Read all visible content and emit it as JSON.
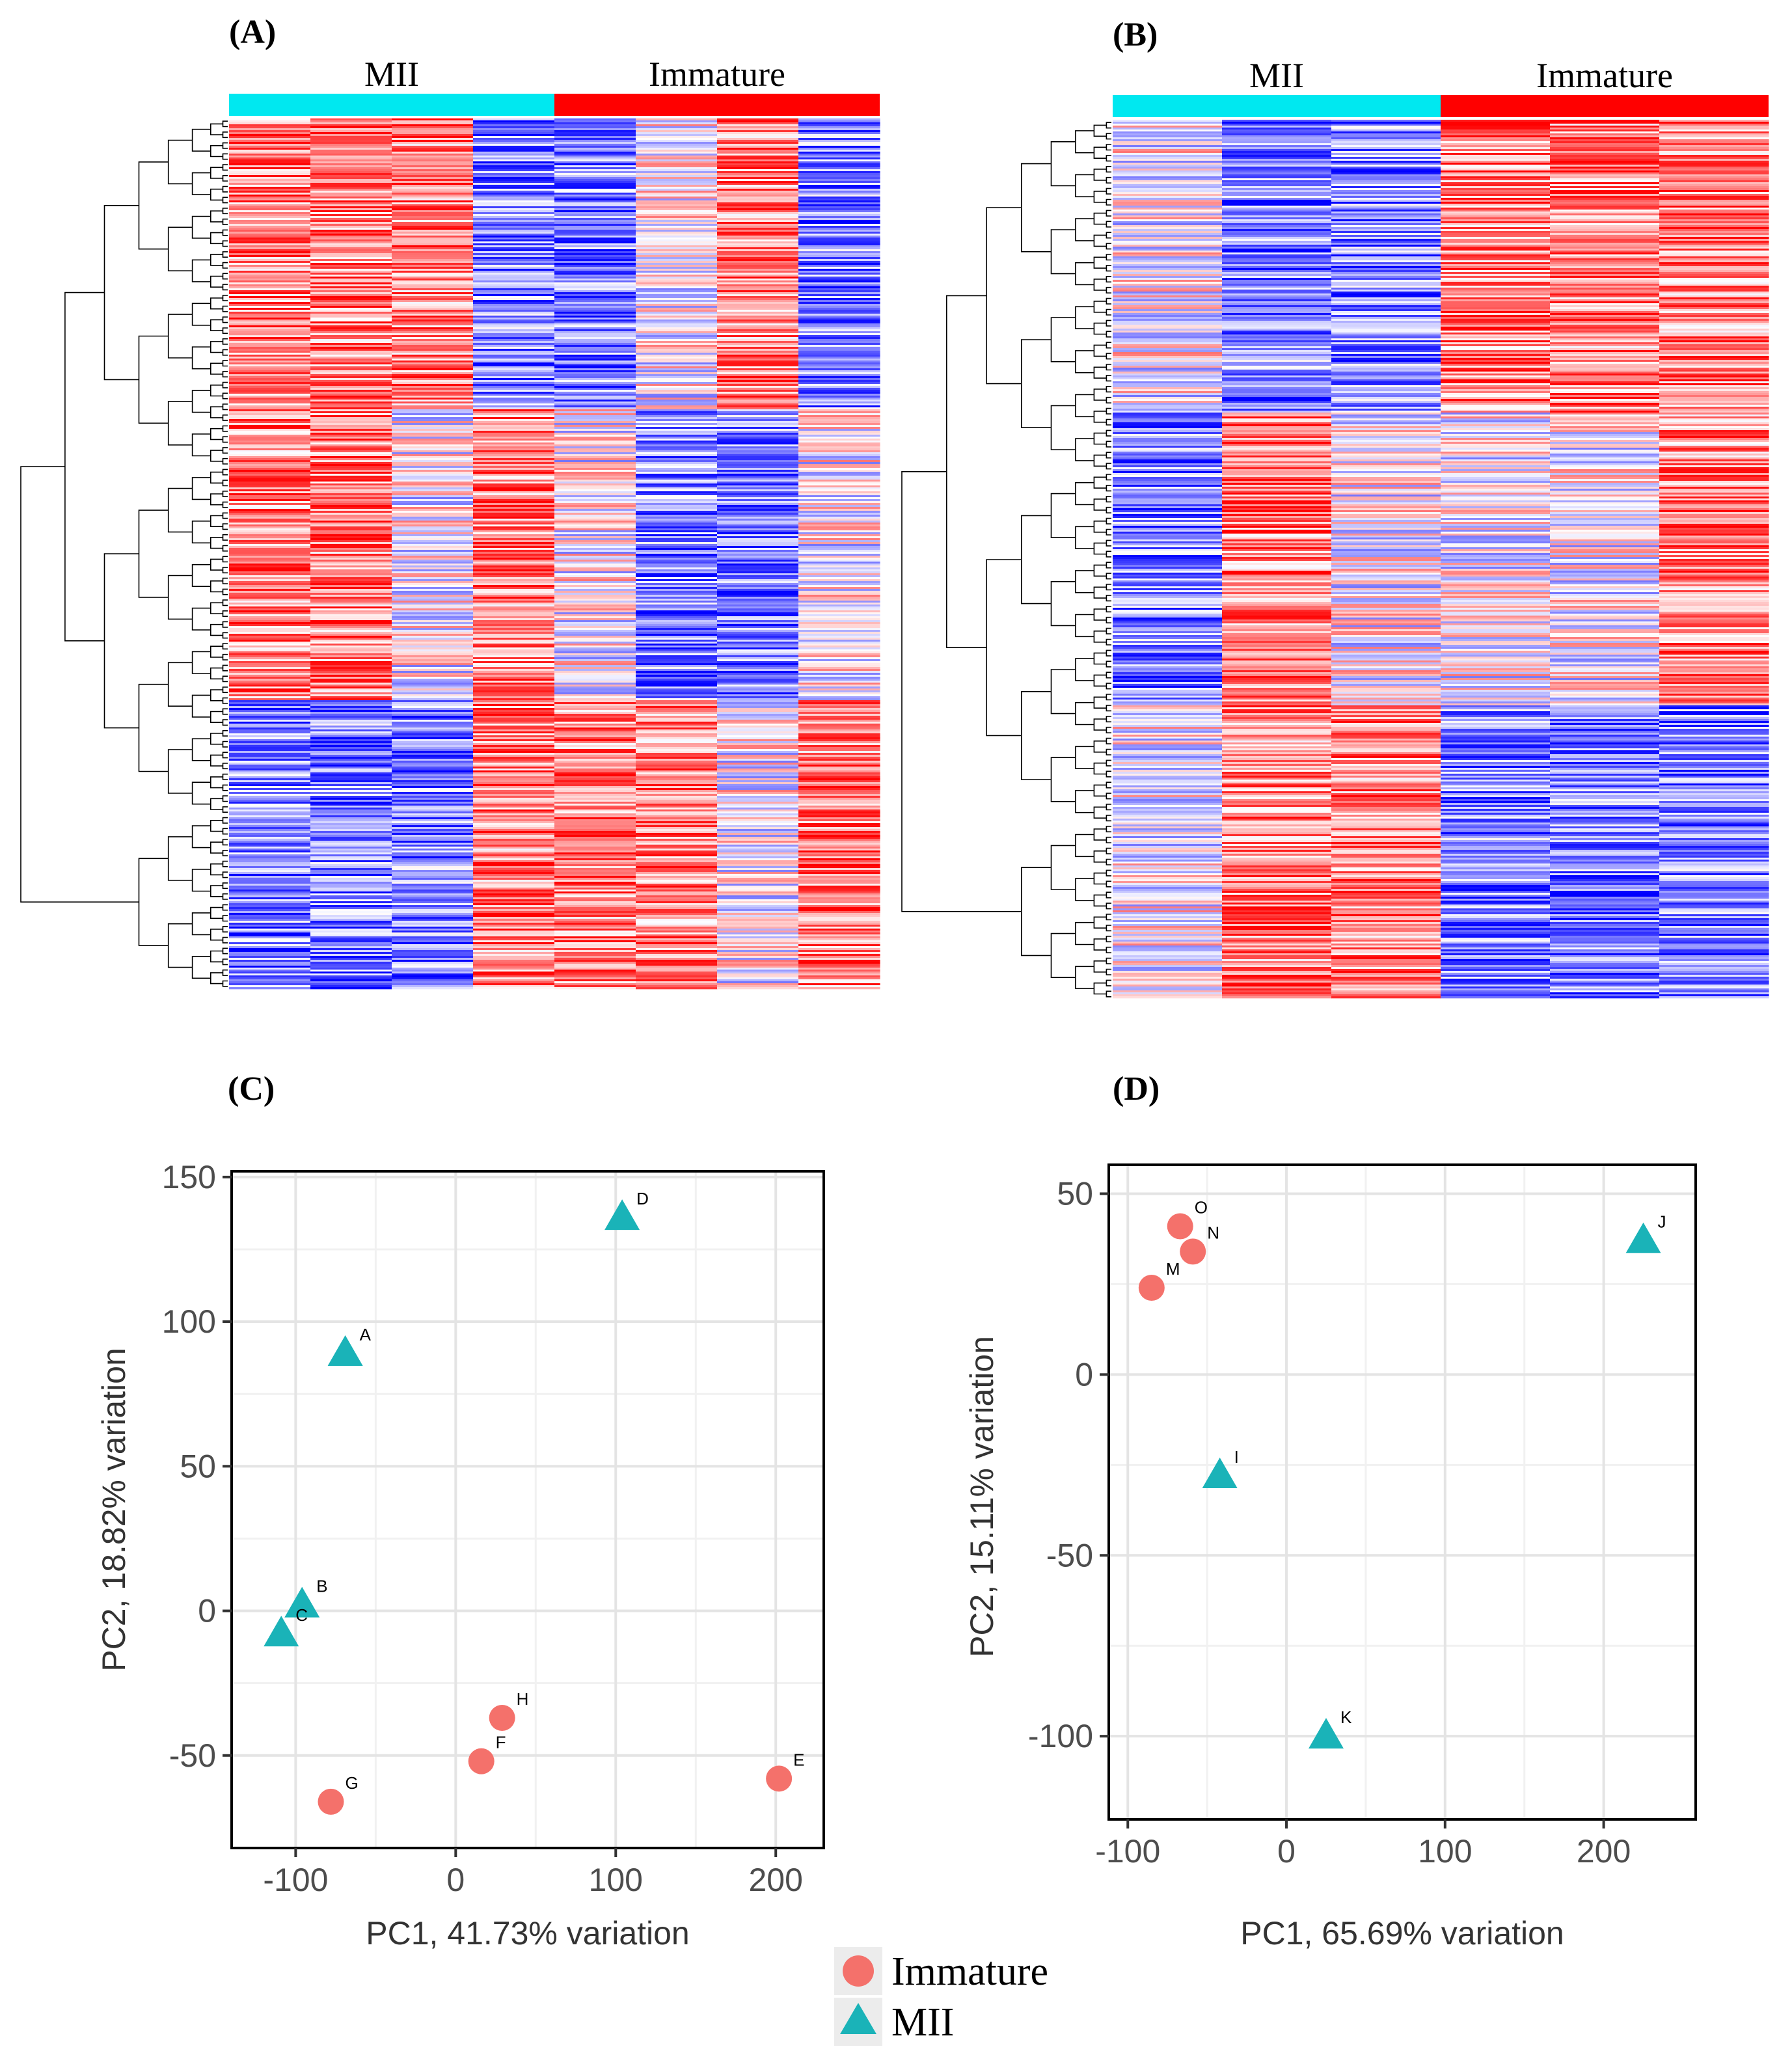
{
  "figure": {
    "background": "#ffffff",
    "colors": {
      "mii": "#00e8f0",
      "immature": "#ff0000",
      "heat_low": "#0000ff",
      "heat_high": "#ff0000",
      "point_mii": "#1ab3b8",
      "point_immature": "#f4716b",
      "grid": "#e4e4e4"
    }
  },
  "panels": {
    "A": {
      "label": "(A)",
      "groups": [
        {
          "name": "MII",
          "samples": 4
        },
        {
          "name": "Immature",
          "samples": 4
        }
      ]
    },
    "B": {
      "label": "(B)",
      "groups": [
        {
          "name": "MII",
          "samples": 3
        },
        {
          "name": "Immature",
          "samples": 3
        }
      ]
    },
    "C": {
      "label": "(C)"
    },
    "D": {
      "label": "(D)"
    }
  },
  "legend": {
    "items": [
      {
        "name": "Immature",
        "shape": "circle"
      },
      {
        "name": "MII",
        "shape": "triangle"
      }
    ]
  },
  "chart_data": [
    {
      "id": "A",
      "type": "heatmap",
      "title": "",
      "column_groups": [
        "MII",
        "MII",
        "MII",
        "MII",
        "Immature",
        "Immature",
        "Immature",
        "Immature"
      ],
      "row_blocks": [
        {
          "rows": "upper cluster",
          "pattern": [
            "high",
            "high",
            "high",
            "low",
            "low",
            "mixed",
            "high",
            "low"
          ]
        },
        {
          "rows": "middle cluster",
          "pattern": [
            "high",
            "high",
            "mixed",
            "high",
            "mixed",
            "low",
            "low",
            "mixed"
          ]
        },
        {
          "rows": "lower cluster",
          "pattern": [
            "low",
            "low",
            "low",
            "high",
            "high",
            "high",
            "mixed",
            "high"
          ]
        }
      ],
      "dendrogram": "rows"
    },
    {
      "id": "B",
      "type": "heatmap",
      "title": "",
      "column_groups": [
        "MII",
        "MII",
        "MII",
        "Immature",
        "Immature",
        "Immature"
      ],
      "row_blocks": [
        {
          "rows": "upper cluster",
          "pattern": [
            "mixed",
            "low",
            "low",
            "high",
            "high",
            "high"
          ]
        },
        {
          "rows": "middle cluster",
          "pattern": [
            "low",
            "high",
            "mixed",
            "mixed",
            "mixed",
            "high"
          ]
        },
        {
          "rows": "lower cluster",
          "pattern": [
            "mixed",
            "high",
            "high",
            "low",
            "low",
            "low"
          ]
        }
      ],
      "dendrogram": "rows"
    },
    {
      "id": "C",
      "type": "scatter",
      "xlabel": "PC1, 41.73% variation",
      "ylabel": "PC2, 18.82% variation",
      "xlim": [
        -140,
        230
      ],
      "ylim": [
        -82,
        152
      ],
      "xticks": [
        -100,
        0,
        100,
        200
      ],
      "yticks": [
        -50,
        0,
        50,
        100,
        150
      ],
      "xtick_labels": [
        "-100",
        "0",
        "100",
        "200"
      ],
      "ytick_labels": [
        "-50",
        "0",
        "50",
        "100",
        "150"
      ],
      "grid": true,
      "legend": "bottom",
      "series": [
        {
          "name": "Immature",
          "points": [
            {
              "label": "E",
              "x": 202,
              "y": -58
            },
            {
              "label": "F",
              "x": 16,
              "y": -52
            },
            {
              "label": "G",
              "x": -78,
              "y": -66
            },
            {
              "label": "H",
              "x": 29,
              "y": -37
            }
          ]
        },
        {
          "name": "MII",
          "points": [
            {
              "label": "A",
              "x": -69,
              "y": 89
            },
            {
              "label": "B",
              "x": -96,
              "y": 2
            },
            {
              "label": "C",
              "x": -109,
              "y": -8
            },
            {
              "label": "D",
              "x": 104,
              "y": 136
            }
          ]
        }
      ]
    },
    {
      "id": "D",
      "type": "scatter",
      "xlabel": "PC1, 65.69% variation",
      "ylabel": "PC2, 15.11% variation",
      "xlim": [
        -112,
        258
      ],
      "ylim": [
        -123,
        58
      ],
      "xticks": [
        -100,
        0,
        100,
        200
      ],
      "yticks": [
        -100,
        -50,
        0,
        50
      ],
      "xtick_labels": [
        "-100",
        "0",
        "100",
        "200"
      ],
      "ytick_labels": [
        "-100",
        "-50",
        "0",
        "50"
      ],
      "grid": true,
      "legend": "bottom",
      "series": [
        {
          "name": "Immature",
          "points": [
            {
              "label": "M",
              "x": -85,
              "y": 24
            },
            {
              "label": "N",
              "x": -59,
              "y": 34
            },
            {
              "label": "O",
              "x": -67,
              "y": 41
            }
          ]
        },
        {
          "name": "MII",
          "points": [
            {
              "label": "I",
              "x": -42,
              "y": -28
            },
            {
              "label": "J",
              "x": 225,
              "y": 37
            },
            {
              "label": "K",
              "x": 25,
              "y": -100
            }
          ]
        }
      ]
    }
  ]
}
